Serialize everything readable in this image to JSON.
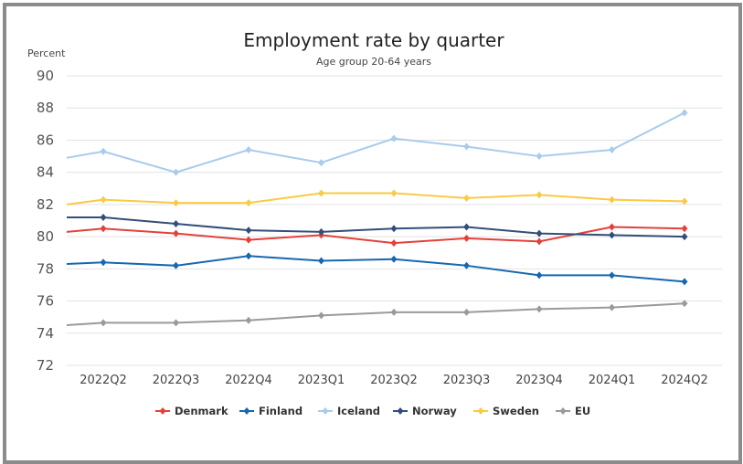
{
  "chart_data": {
    "type": "line",
    "title": "Employment rate by quarter",
    "subtitle": "Age group 20-64 years",
    "ylabel": "Percent",
    "xlabel": "",
    "ylim": [
      72,
      90
    ],
    "yticks": [
      72,
      74,
      76,
      78,
      80,
      82,
      84,
      86,
      88,
      90
    ],
    "grid": true,
    "legend_position": "bottom",
    "categories": [
      "2022Q2",
      "2022Q3",
      "2022Q4",
      "2023Q1",
      "2023Q2",
      "2023Q3",
      "2023Q4",
      "2024Q1",
      "2024Q2"
    ],
    "series": [
      {
        "name": "Denmark",
        "color": "#e5403a",
        "edge_start": 80.3,
        "values": [
          80.5,
          80.2,
          79.8,
          80.1,
          79.6,
          79.9,
          79.7,
          80.6,
          80.5
        ]
      },
      {
        "name": "Finland",
        "color": "#1668b0",
        "edge_start": 78.3,
        "values": [
          78.4,
          78.2,
          78.8,
          78.5,
          78.6,
          78.2,
          77.6,
          77.6,
          77.2
        ]
      },
      {
        "name": "Iceland",
        "color": "#a9cbec",
        "edge_start": 84.9,
        "values": [
          85.3,
          84.0,
          85.4,
          84.6,
          86.1,
          85.6,
          85.0,
          85.4,
          87.7
        ]
      },
      {
        "name": "Norway",
        "color": "#344e7a",
        "edge_start": 81.2,
        "values": [
          81.2,
          80.8,
          80.4,
          80.3,
          80.5,
          80.6,
          80.2,
          80.1,
          80.0
        ]
      },
      {
        "name": "Sweden",
        "color": "#f8cb45",
        "edge_start": 82.0,
        "values": [
          82.3,
          82.1,
          82.1,
          82.7,
          82.7,
          82.4,
          82.6,
          82.3,
          82.2
        ]
      },
      {
        "name": "EU",
        "color": "#9a9a9a",
        "edge_start": 74.5,
        "values": [
          74.65,
          74.65,
          74.8,
          75.1,
          75.3,
          75.3,
          75.5,
          75.6,
          75.85
        ]
      }
    ]
  }
}
